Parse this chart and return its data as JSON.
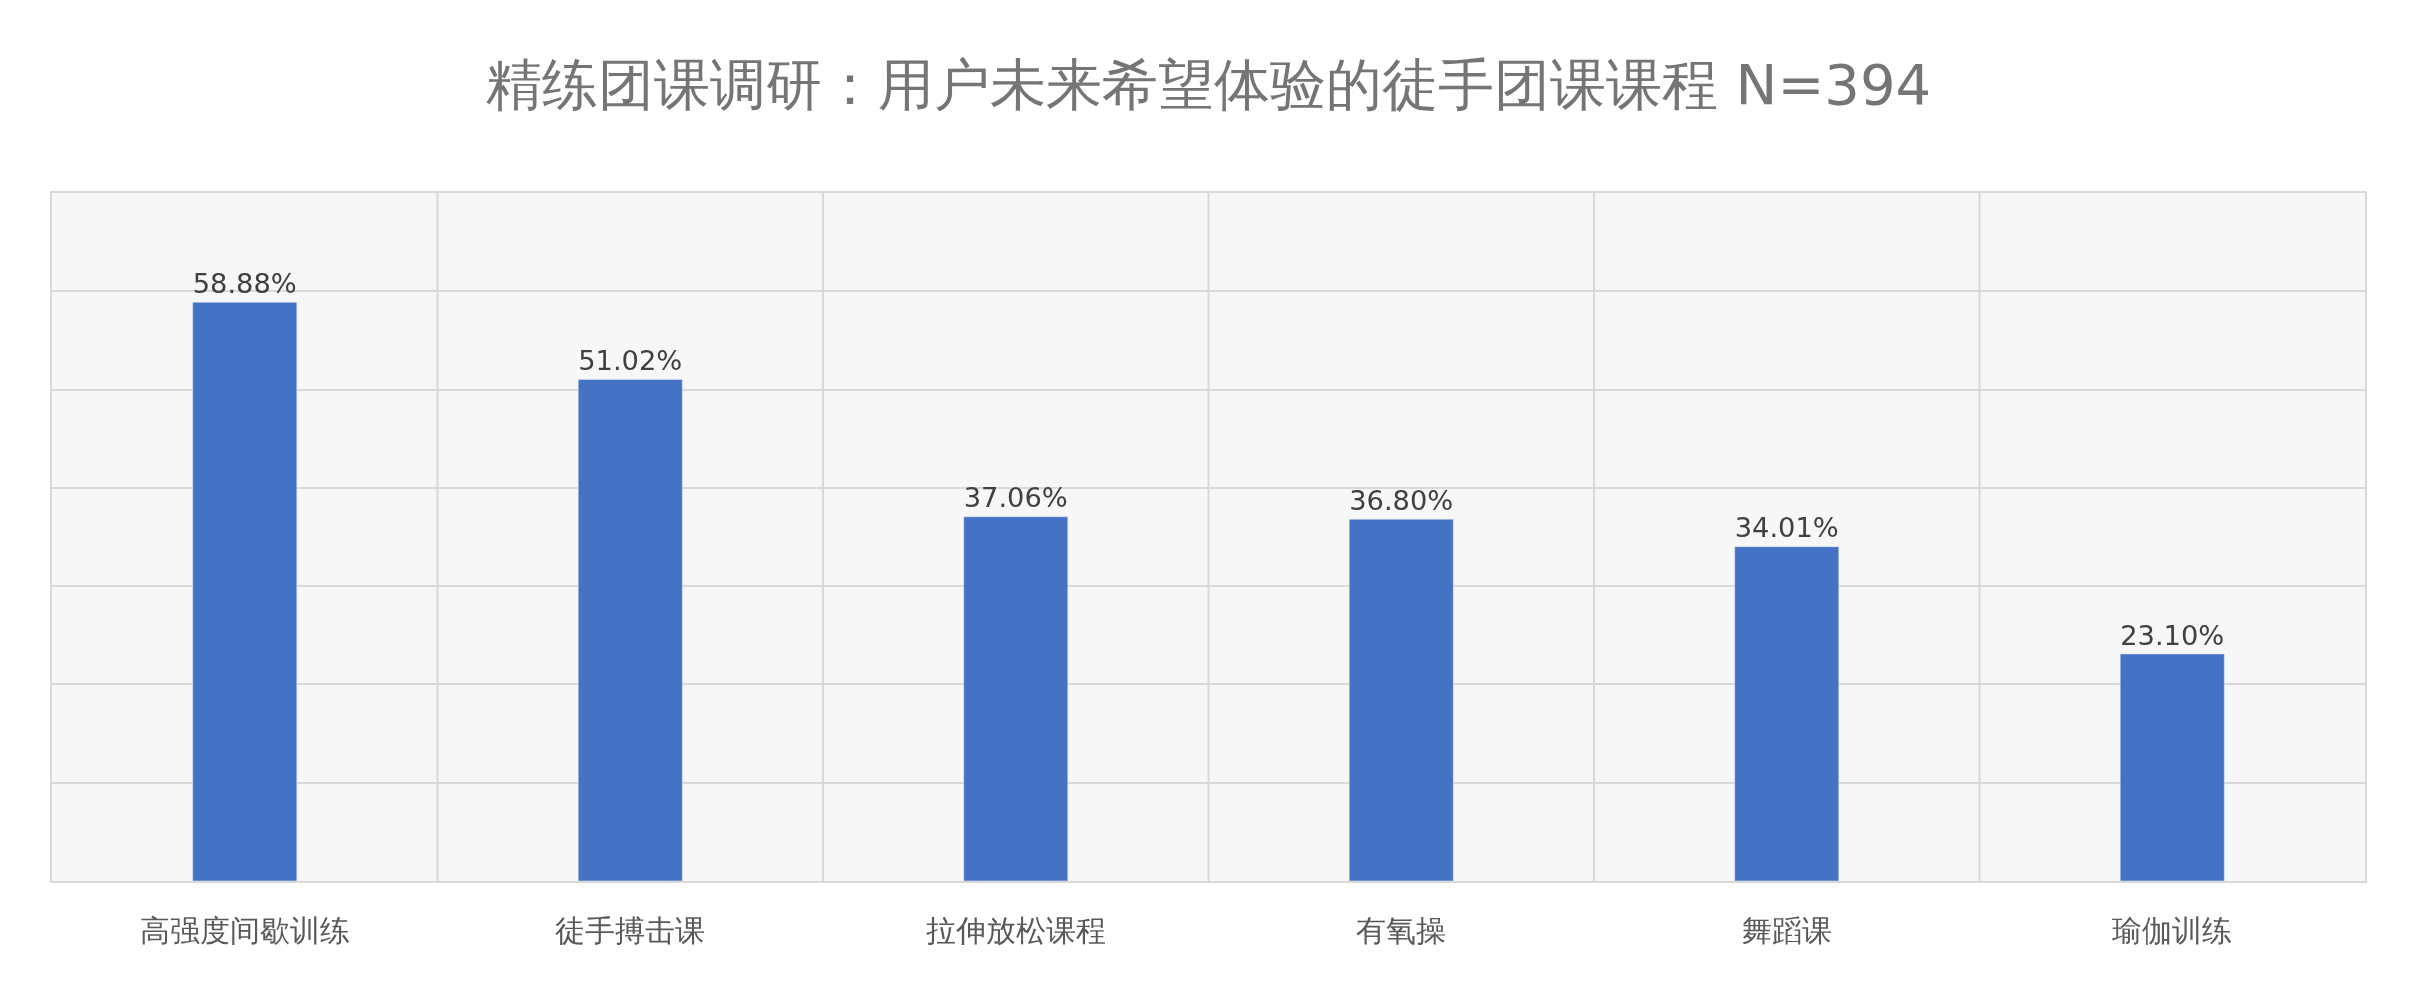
{
  "chart_data": {
    "type": "bar",
    "title": "精练团课调研：用户未来希望体验的徒手团课课程 N=394",
    "categories": [
      "高强度间歇训练",
      "徒手搏击课",
      "拉伸放松课程",
      "有氧操",
      "舞蹈课",
      "瑜伽训练"
    ],
    "values": [
      58.88,
      51.02,
      37.06,
      36.8,
      34.01,
      23.1
    ],
    "value_labels": [
      "58.88%",
      "51.02%",
      "37.06%",
      "36.80%",
      "34.01%",
      "23.10%"
    ],
    "color": "#4472c4",
    "ylim": [
      0,
      70
    ],
    "yticks": [
      {
        "value": 0,
        "label": null
      },
      {
        "value": 10,
        "label": null
      },
      {
        "value": 20,
        "label": null
      },
      {
        "value": 30,
        "label": null
      },
      {
        "value": 40,
        "label": null
      },
      {
        "value": 50,
        "label": null
      },
      {
        "value": 60,
        "label": null
      },
      {
        "value": 70,
        "label": null
      }
    ],
    "grid": true,
    "tick_labels": "x"
  }
}
